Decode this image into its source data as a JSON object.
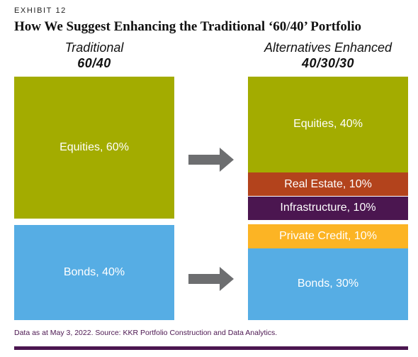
{
  "exhibit_label": "EXHIBIT 12",
  "chart_data": {
    "type": "stacked-block",
    "title": "How We Suggest Enhancing the Traditional ‘60/40’ Portfolio",
    "portfolios": [
      {
        "name": "Traditional",
        "allocation": "60/40",
        "segments": [
          {
            "label": "Equities, 60%",
            "value": 60,
            "color": "#a3ac00"
          },
          {
            "label": "Bonds, 40%",
            "value": 40,
            "color": "#56ade4"
          }
        ]
      },
      {
        "name": "Alternatives Enhanced",
        "allocation": "40/30/30",
        "segments": [
          {
            "label": "Equities, 40%",
            "value": 40,
            "color": "#a3ac00"
          },
          {
            "label": "Real Estate, 10%",
            "value": 10,
            "color": "#b3431c"
          },
          {
            "label": "Infrastructure, 10%",
            "value": 10,
            "color": "#4b1650"
          },
          {
            "label": "Private Credit, 10%",
            "value": 10,
            "color": "#fcb424"
          },
          {
            "label": "Bonds, 30%",
            "value": 30,
            "color": "#56ade4"
          }
        ]
      }
    ],
    "arrow_color": "#6d6e70"
  },
  "source_note": "Data as at May 3, 2022. Source: KKR Portfolio Construction and Data Analytics."
}
